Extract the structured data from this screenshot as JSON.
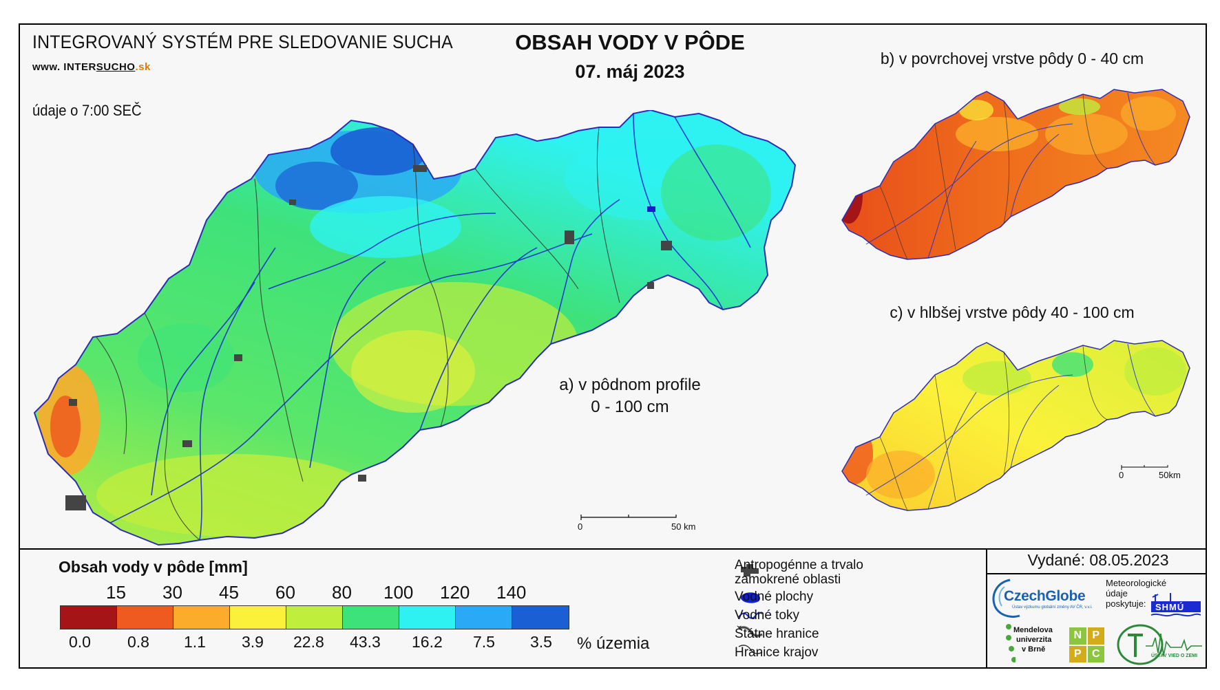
{
  "header": {
    "system_title": "INTEGROVANÝ SYSTÉM PRE SLEDOVANIE SUCHA",
    "website_prefix": "www. ",
    "website_a": "INTER",
    "website_b": "SUCHO",
    "website_c": ".sk",
    "time_info": "údaje o 7:00 SEČ",
    "map_title": "OBSAH VODY V PÔDE",
    "map_date": "07. máj 2023"
  },
  "maps": {
    "a_label_line1": "a) v pôdnom profile",
    "a_label_line2": "0 - 100 cm",
    "b_label": "b) v povrchovej vrstve pôdy 0 - 40 cm",
    "c_label": "c) v hlbšej vrstve pôdy 40 - 100 cm",
    "scale_main": {
      "start": "0",
      "end": "50 km"
    },
    "scale_small": {
      "start": "0",
      "end": "50km"
    }
  },
  "legend": {
    "title": "Obsah vody v pôde  [mm]",
    "thresholds": [
      "15",
      "30",
      "45",
      "60",
      "80",
      "100",
      "120",
      "140"
    ],
    "classes": [
      {
        "color": "#a51416",
        "percent": "0.0"
      },
      {
        "color": "#ee5a20",
        "percent": "0.8"
      },
      {
        "color": "#fbac2b",
        "percent": "1.1"
      },
      {
        "color": "#fbf13a",
        "percent": "3.9"
      },
      {
        "color": "#c0ee3d",
        "percent": "22.8"
      },
      {
        "color": "#3ee27a",
        "percent": "43.3"
      },
      {
        "color": "#2ef2f2",
        "percent": "16.2"
      },
      {
        "color": "#2aaaf6",
        "percent": "7.5"
      },
      {
        "color": "#1a60d4",
        "percent": "3.5"
      }
    ],
    "percent_unit": "% územia"
  },
  "key": {
    "items": [
      {
        "icon": "urban-area-icon",
        "label_l1": "Antropogénne a trvalo",
        "label_l2": "zamokrené oblasti"
      },
      {
        "icon": "water-body-icon",
        "label_l1": "Vodné plochy"
      },
      {
        "icon": "river-icon",
        "label_l1": "Vodné toky"
      },
      {
        "icon": "state-border-icon",
        "label_l1": "Štátne hranice"
      },
      {
        "icon": "region-border-icon",
        "label_l1": "Hranice krajov"
      }
    ]
  },
  "footer": {
    "issued": "Vydané: 08.05.2023",
    "czechglobe": "CzechGlobe",
    "czechglobe_sub": "Ústav výzkumu globální změny AV ČR, v.v.i.",
    "met_l1": "Meteorologické",
    "met_l2": "údaje",
    "met_l3": "poskytuje:",
    "shmu": "SHMÚ",
    "mendel_l1": "Mendelova",
    "mendel_l2": "univerzita",
    "mendel_l3": "v Brně",
    "nppc": [
      "N",
      "P",
      "P",
      "C"
    ],
    "uvz": "ÚSTAV VIED O ZEMI"
  }
}
